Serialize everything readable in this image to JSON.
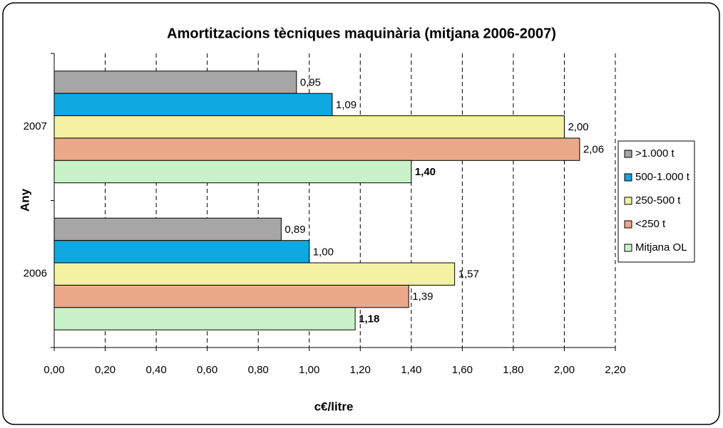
{
  "chart_data": {
    "type": "hbar",
    "title": "Amortitzacions tècniques maquinària (mitjana 2006-2007)",
    "xlabel": "c€/litre",
    "ylabel": "Any",
    "categories": [
      "2006",
      "2007"
    ],
    "series": [
      {
        "name": ">1.000 t",
        "color": "#a6a6a6",
        "values": [
          0.89,
          0.95
        ],
        "value_labels": [
          "0,89",
          "0,95"
        ]
      },
      {
        "name": "500-1.000 t",
        "color": "#0fa8e0",
        "values": [
          1.0,
          1.09
        ],
        "value_labels": [
          "1,00",
          "1,09"
        ]
      },
      {
        "name": "250-500 t",
        "color": "#f2f2a0",
        "values": [
          1.57,
          2.0
        ],
        "value_labels": [
          "1,57",
          "2,00"
        ]
      },
      {
        "name": "<250 t",
        "color": "#eba98a",
        "values": [
          1.39,
          2.06
        ],
        "value_labels": [
          "1,39",
          "2,06"
        ]
      },
      {
        "name": "Mitjana OL",
        "color": "#c9f2c9",
        "values": [
          1.18,
          1.4
        ],
        "value_labels": [
          "1,18",
          "1,40"
        ]
      }
    ],
    "xlim": [
      0,
      2.2
    ],
    "xticks": [
      {
        "value": 0,
        "label": "0,00"
      },
      {
        "value": 0.2,
        "label": "0,20"
      },
      {
        "value": 0.4,
        "label": "0,40"
      },
      {
        "value": 0.6,
        "label": "0,60"
      },
      {
        "value": 0.8,
        "label": "0,80"
      },
      {
        "value": 1.0,
        "label": "1,00"
      },
      {
        "value": 1.2,
        "label": "1,20"
      },
      {
        "value": 1.4,
        "label": "1,40"
      },
      {
        "value": 1.6,
        "label": "1,60"
      },
      {
        "value": 1.8,
        "label": "1,80"
      },
      {
        "value": 2.0,
        "label": "2,00"
      },
      {
        "value": 2.2,
        "label": "2,20"
      }
    ],
    "grid": true,
    "legend": "right"
  }
}
